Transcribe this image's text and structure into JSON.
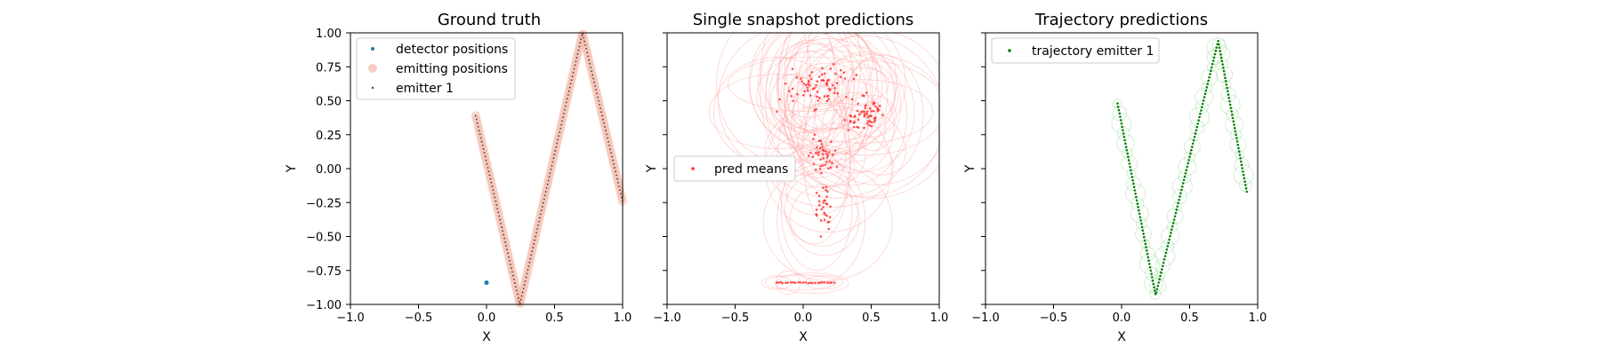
{
  "chart_data": [
    {
      "type": "scatter",
      "title": "Ground truth",
      "xlabel": "X",
      "ylabel": "Y",
      "xlim": [
        -1.0,
        1.0
      ],
      "ylim": [
        -1.0,
        1.0
      ],
      "xticks": [
        "−1.0",
        "−0.5",
        "0.0",
        "0.5",
        "1.0"
      ],
      "yticks": [
        "1.00",
        "0.75",
        "0.50",
        "0.25",
        "0.00",
        "−0.25",
        "−0.50",
        "−0.75",
        "−1.00"
      ],
      "legend": [
        "detector positions",
        "emitting positions",
        "emitter 1"
      ],
      "legend_loc": "upper-left",
      "detector": [
        0.0,
        -0.84
      ],
      "emitter_path": [
        [
          -0.08,
          0.39
        ],
        [
          0.245,
          -1.0
        ],
        [
          0.705,
          1.0
        ],
        [
          1.0,
          -0.24
        ]
      ]
    },
    {
      "type": "scatter",
      "title": "Single snapshot predictions",
      "xlabel": "X",
      "ylabel": "Y",
      "xlim": [
        -1.0,
        1.0
      ],
      "ylim": [
        -1.0,
        1.0
      ],
      "xticks": [
        "−1.0",
        "−0.5",
        "0.0",
        "0.5",
        "1.0"
      ],
      "legend": [
        "pred means"
      ],
      "legend_loc": "center-left",
      "cluster_centers": [
        [
          0.1,
          0.6
        ],
        [
          0.45,
          0.4
        ],
        [
          0.15,
          0.1
        ],
        [
          0.15,
          -0.3
        ],
        [
          0.05,
          -0.84
        ]
      ]
    },
    {
      "type": "scatter",
      "title": "Trajectory predictions",
      "xlabel": "X",
      "ylabel": "Y",
      "xlim": [
        -1.0,
        1.0
      ],
      "ylim": [
        -1.0,
        1.0
      ],
      "xticks": [
        "−1.0",
        "−0.5",
        "0.0",
        "0.5",
        "1.0"
      ],
      "legend": [
        "trajectory emitter 1"
      ],
      "legend_loc": "upper-left",
      "trajectory": [
        [
          -0.03,
          0.48
        ],
        [
          0.25,
          -0.93
        ],
        [
          0.71,
          0.94
        ],
        [
          0.92,
          -0.17
        ]
      ]
    }
  ],
  "colors": {
    "detector": "#1f77b4",
    "emitting": "#f4b8a8",
    "emitter": "#444444",
    "pred": "#ff3333",
    "traj": "#008000"
  }
}
